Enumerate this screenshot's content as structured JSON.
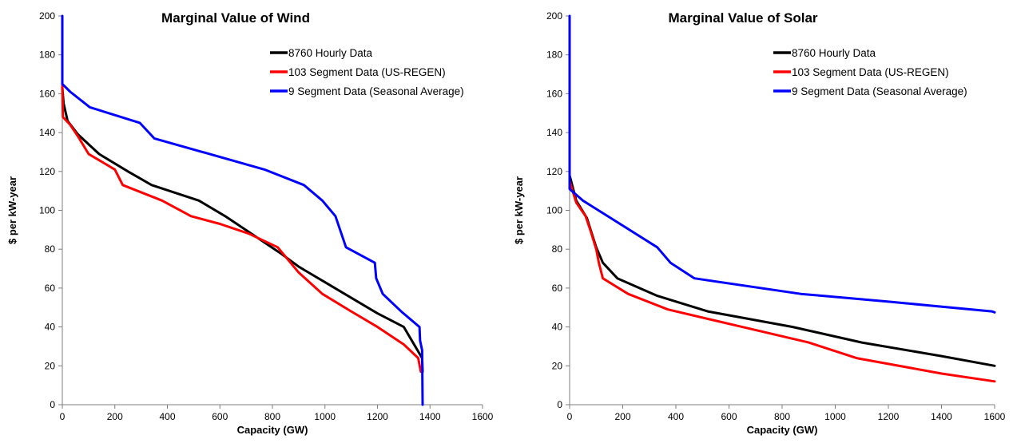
{
  "chart_data": [
    {
      "type": "line",
      "title": "Marginal Value of Wind",
      "xlabel": "Capacity (GW)",
      "ylabel": "$ per kW-year",
      "xlim": [
        0,
        1600
      ],
      "ylim": [
        0,
        200
      ],
      "xticks": [
        "0",
        "200",
        "400",
        "600",
        "800",
        "1000",
        "1200",
        "1400",
        "1600"
      ],
      "yticks": [
        "0",
        "20",
        "40",
        "60",
        "80",
        "100",
        "120",
        "140",
        "160",
        "180",
        "200"
      ],
      "grid": false,
      "legend_position": "top-right",
      "series": [
        {
          "name": "8760 Hourly Data",
          "color": "#000000",
          "points": [
            [
              0,
              163
            ],
            [
              5,
              155
            ],
            [
              20,
              146
            ],
            [
              60,
              139
            ],
            [
              140,
              129
            ],
            [
              250,
              120
            ],
            [
              340,
              113
            ],
            [
              520,
              105
            ],
            [
              620,
              97
            ],
            [
              720,
              88
            ],
            [
              830,
              78
            ],
            [
              900,
              71
            ],
            [
              1000,
              63
            ],
            [
              1100,
              55
            ],
            [
              1200,
              47
            ],
            [
              1300,
              40
            ],
            [
              1370,
              24
            ],
            [
              1372,
              17
            ]
          ]
        },
        {
          "name": "103 Segment Data (US-REGEN)",
          "color": "#ff0000",
          "points": [
            [
              0,
              165
            ],
            [
              2,
              148
            ],
            [
              30,
              144
            ],
            [
              60,
              138
            ],
            [
              100,
              129
            ],
            [
              200,
              121
            ],
            [
              230,
              113
            ],
            [
              380,
              105
            ],
            [
              490,
              97
            ],
            [
              600,
              93
            ],
            [
              710,
              88
            ],
            [
              820,
              81
            ],
            [
              900,
              68
            ],
            [
              990,
              57
            ],
            [
              1100,
              48
            ],
            [
              1200,
              40
            ],
            [
              1300,
              31
            ],
            [
              1355,
              24
            ],
            [
              1365,
              17
            ]
          ]
        },
        {
          "name": "9 Segment Data (Seasonal Average)",
          "color": "#0000ff",
          "points": [
            [
              0,
              200
            ],
            [
              0,
              165
            ],
            [
              30,
              161
            ],
            [
              105,
              153
            ],
            [
              295,
              145
            ],
            [
              350,
              137
            ],
            [
              770,
              121
            ],
            [
              920,
              113
            ],
            [
              990,
              105
            ],
            [
              1040,
              97
            ],
            [
              1060,
              89
            ],
            [
              1080,
              81
            ],
            [
              1190,
              73
            ],
            [
              1195,
              65
            ],
            [
              1220,
              57
            ],
            [
              1290,
              48
            ],
            [
              1360,
              40
            ],
            [
              1362,
              33
            ],
            [
              1370,
              28
            ],
            [
              1372,
              0
            ]
          ]
        }
      ]
    },
    {
      "type": "line",
      "title": "Marginal Value of Solar",
      "xlabel": "Capacity (GW)",
      "ylabel": "$ per kW-year",
      "xlim": [
        0,
        1600
      ],
      "ylim": [
        0,
        200
      ],
      "xticks": [
        "0",
        "200",
        "400",
        "600",
        "800",
        "1000",
        "1200",
        "1400",
        "1600"
      ],
      "yticks": [
        "0",
        "20",
        "40",
        "60",
        "80",
        "100",
        "120",
        "140",
        "160",
        "180",
        "200"
      ],
      "grid": false,
      "legend_position": "top-right",
      "series": [
        {
          "name": "8760 Hourly Data",
          "color": "#000000",
          "points": [
            [
              0,
              118
            ],
            [
              25,
              105
            ],
            [
              65,
              96
            ],
            [
              100,
              81
            ],
            [
              125,
              73
            ],
            [
              180,
              65
            ],
            [
              330,
              56
            ],
            [
              520,
              48
            ],
            [
              840,
              40
            ],
            [
              1100,
              32
            ],
            [
              1400,
              25
            ],
            [
              1600,
              20
            ]
          ]
        },
        {
          "name": "103 Segment Data (US-REGEN)",
          "color": "#ff0000",
          "points": [
            [
              0,
              115
            ],
            [
              25,
              104
            ],
            [
              60,
              97
            ],
            [
              80,
              89
            ],
            [
              100,
              80
            ],
            [
              110,
              73
            ],
            [
              125,
              65
            ],
            [
              220,
              57
            ],
            [
              370,
              49
            ],
            [
              650,
              40
            ],
            [
              900,
              32
            ],
            [
              1080,
              24
            ],
            [
              1400,
              16
            ],
            [
              1600,
              12
            ]
          ]
        },
        {
          "name": "9 Segment Data (Seasonal Average)",
          "color": "#0000ff",
          "points": [
            [
              0,
              200
            ],
            [
              0,
              111
            ],
            [
              50,
              105
            ],
            [
              330,
              81
            ],
            [
              380,
              73
            ],
            [
              470,
              65
            ],
            [
              870,
              57
            ],
            [
              1200,
              53
            ],
            [
              1590,
              48
            ],
            [
              1600,
              47.5
            ]
          ]
        }
      ]
    }
  ]
}
